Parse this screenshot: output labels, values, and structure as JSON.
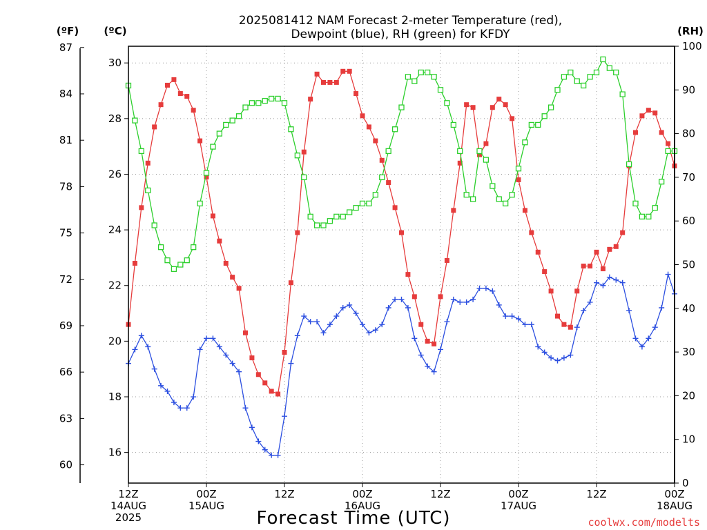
{
  "chart_data": {
    "type": "line",
    "title": [
      "2025081412 NAM Forecast 2-meter Temperature (red),",
      "Dewpoint (blue), RH (green) for KFDY"
    ],
    "unit_labels": {
      "fahrenheit": "(ºF)",
      "celsius": "(ºC)",
      "rh": "(RH)"
    },
    "xlabel": "Forecast Time (UTC)",
    "credit": "coolwx.com/modelts",
    "x_range_hours": [
      0,
      84
    ],
    "x_ticks": [
      {
        "hour": 0,
        "label": [
          "12Z",
          "14AUG",
          "2025"
        ]
      },
      {
        "hour": 12,
        "label": [
          "00Z",
          "15AUG"
        ]
      },
      {
        "hour": 24,
        "label": [
          "12Z"
        ]
      },
      {
        "hour": 36,
        "label": [
          "00Z",
          "16AUG"
        ]
      },
      {
        "hour": 48,
        "label": [
          "12Z"
        ]
      },
      {
        "hour": 60,
        "label": [
          "00Z",
          "17AUG"
        ]
      },
      {
        "hour": 72,
        "label": [
          "12Z"
        ]
      },
      {
        "hour": 84,
        "label": [
          "00Z",
          "18AUG"
        ]
      }
    ],
    "y_celsius": {
      "range": [
        14.9,
        30.6
      ],
      "ticks": [
        16,
        18,
        20,
        22,
        24,
        26,
        28,
        30
      ]
    },
    "y_fahrenheit": {
      "ticks": [
        60,
        63,
        66,
        69,
        72,
        75,
        78,
        81,
        84,
        87
      ]
    },
    "y_rh": {
      "range": [
        0,
        100
      ],
      "ticks": [
        0,
        10,
        20,
        30,
        40,
        50,
        60,
        70,
        80,
        90,
        100
      ]
    },
    "grid": true,
    "colors": {
      "temperature": "#e63c3c",
      "dewpoint": "#2c4fe0",
      "rh": "#2ccf2c",
      "grid": "#999999"
    },
    "series": [
      {
        "name": "Temperature (red)",
        "unit": "C",
        "marker": "filled-square",
        "x": [
          0,
          1,
          2,
          3,
          4,
          5,
          6,
          7,
          8,
          9,
          10,
          11,
          12,
          13,
          14,
          15,
          16,
          17,
          18,
          19,
          20,
          21,
          22,
          23,
          24,
          25,
          26,
          27,
          28,
          29,
          30,
          31,
          32,
          33,
          34,
          35,
          36,
          37,
          38,
          39,
          40,
          41,
          42,
          43,
          44,
          45,
          46,
          47,
          48,
          49,
          50,
          51,
          52,
          53,
          54,
          55,
          56,
          57,
          58,
          59,
          60,
          61,
          62,
          63,
          64,
          65,
          66,
          67,
          68,
          69,
          70,
          71,
          72,
          73,
          74,
          75,
          76,
          77,
          78,
          79,
          80,
          81,
          82,
          83,
          84
        ],
        "values": [
          20.6,
          22.8,
          24.8,
          26.4,
          27.7,
          28.5,
          29.2,
          29.4,
          28.9,
          28.8,
          28.3,
          27.2,
          25.9,
          24.5,
          23.6,
          22.8,
          22.3,
          21.9,
          20.3,
          19.4,
          18.8,
          18.5,
          18.2,
          18.1,
          19.6,
          22.1,
          23.9,
          26.8,
          28.7,
          29.6,
          29.3,
          29.3,
          29.3,
          29.7,
          29.7,
          28.9,
          28.1,
          27.7,
          27.2,
          26.5,
          25.7,
          24.8,
          23.9,
          22.4,
          21.6,
          20.6,
          20.0,
          19.9,
          21.6,
          22.9,
          24.7,
          26.4,
          28.5,
          28.4,
          26.7,
          27.1,
          28.4,
          28.7,
          28.5,
          28.0,
          25.8,
          24.7,
          23.9,
          23.2,
          22.5,
          21.8,
          20.9,
          20.6,
          20.5,
          21.8,
          22.7,
          22.7,
          23.2,
          22.6,
          23.3,
          23.4,
          23.9,
          26.3,
          27.5,
          28.1,
          28.3,
          28.2,
          27.5,
          27.1,
          26.3
        ]
      },
      {
        "name": "Dewpoint (blue)",
        "unit": "C",
        "marker": "plus",
        "x": [
          0,
          1,
          2,
          3,
          4,
          5,
          6,
          7,
          8,
          9,
          10,
          11,
          12,
          13,
          14,
          15,
          16,
          17,
          18,
          19,
          20,
          21,
          22,
          23,
          24,
          25,
          26,
          27,
          28,
          29,
          30,
          31,
          32,
          33,
          34,
          35,
          36,
          37,
          38,
          39,
          40,
          41,
          42,
          43,
          44,
          45,
          46,
          47,
          48,
          49,
          50,
          51,
          52,
          53,
          54,
          55,
          56,
          57,
          58,
          59,
          60,
          61,
          62,
          63,
          64,
          65,
          66,
          67,
          68,
          69,
          70,
          71,
          72,
          73,
          74,
          75,
          76,
          77,
          78,
          79,
          80,
          81,
          82,
          83,
          84
        ],
        "values": [
          19.2,
          19.7,
          20.2,
          19.8,
          19.0,
          18.4,
          18.2,
          17.8,
          17.6,
          17.6,
          18.0,
          19.7,
          20.1,
          20.1,
          19.8,
          19.5,
          19.2,
          18.9,
          17.6,
          16.9,
          16.4,
          16.1,
          15.9,
          15.9,
          17.3,
          19.2,
          20.2,
          20.9,
          20.7,
          20.7,
          20.3,
          20.6,
          20.9,
          21.2,
          21.3,
          21.0,
          20.6,
          20.3,
          20.4,
          20.6,
          21.2,
          21.5,
          21.5,
          21.2,
          20.1,
          19.5,
          19.1,
          18.9,
          19.7,
          20.7,
          21.5,
          21.4,
          21.4,
          21.5,
          21.9,
          21.9,
          21.8,
          21.3,
          20.9,
          20.9,
          20.8,
          20.6,
          20.6,
          19.8,
          19.6,
          19.4,
          19.3,
          19.4,
          19.5,
          20.5,
          21.1,
          21.4,
          22.1,
          22.0,
          22.3,
          22.2,
          22.1,
          21.1,
          20.1,
          19.8,
          20.1,
          20.5,
          21.2,
          22.4,
          21.7
        ]
      },
      {
        "name": "RH (green)",
        "unit": "%",
        "marker": "open-square",
        "x": [
          0,
          1,
          2,
          3,
          4,
          5,
          6,
          7,
          8,
          9,
          10,
          11,
          12,
          13,
          14,
          15,
          16,
          17,
          18,
          19,
          20,
          21,
          22,
          23,
          24,
          25,
          26,
          27,
          28,
          29,
          30,
          31,
          32,
          33,
          34,
          35,
          36,
          37,
          38,
          39,
          40,
          41,
          42,
          43,
          44,
          45,
          46,
          47,
          48,
          49,
          50,
          51,
          52,
          53,
          54,
          55,
          56,
          57,
          58,
          59,
          60,
          61,
          62,
          63,
          64,
          65,
          66,
          67,
          68,
          69,
          70,
          71,
          72,
          73,
          74,
          75,
          76,
          77,
          78,
          79,
          80,
          81,
          82,
          83,
          84
        ],
        "values": [
          91,
          83,
          76,
          67,
          59,
          54,
          51,
          49,
          50,
          51,
          54,
          64,
          71,
          77,
          80,
          82,
          83,
          84,
          86,
          87,
          87,
          87.5,
          88,
          88,
          87,
          81,
          75,
          70,
          61,
          59,
          59,
          60,
          61,
          61,
          62,
          63,
          64,
          64,
          66,
          70,
          76,
          81,
          86,
          93,
          92,
          94,
          94,
          93,
          90,
          87,
          82,
          76,
          66,
          65,
          76,
          74,
          68,
          65,
          64,
          66,
          72,
          78,
          82,
          82,
          84,
          86,
          90,
          93,
          94,
          92,
          91,
          93,
          94,
          97,
          95,
          94,
          89,
          73,
          64,
          61,
          61,
          63,
          69,
          76,
          76
        ]
      }
    ]
  }
}
